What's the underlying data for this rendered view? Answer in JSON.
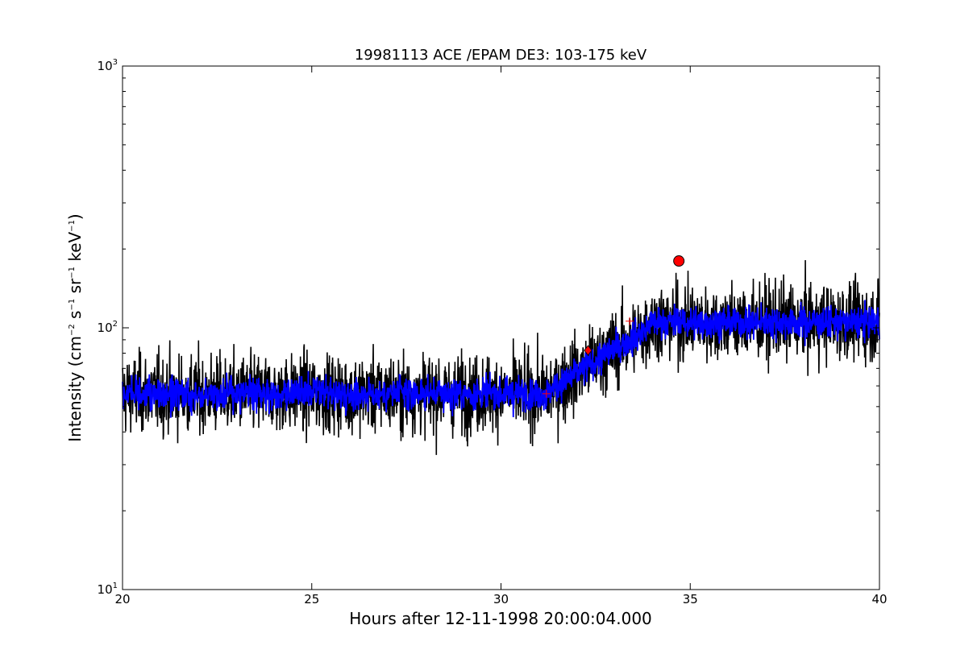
{
  "chart_data": {
    "type": "line",
    "title": "19981113 ACE /EPAM DE3: 103-175 keV",
    "xlabel": "Hours after 12-11-1998 20:00:04.000",
    "ylabel": {
      "prefix": "Intensity (cm",
      "sup1": "−2",
      "mid1": " s",
      "sup2": "−1",
      "mid2": " sr",
      "sup3": "−1",
      "mid3": " keV",
      "sup4": "−1",
      "suffix": ")"
    },
    "xlim": [
      20,
      40
    ],
    "ylim": [
      10,
      1000
    ],
    "yscale": "log",
    "grid": false,
    "x_ticks": [
      {
        "value": 20,
        "label": "20"
      },
      {
        "value": 25,
        "label": "25"
      },
      {
        "value": 30,
        "label": "30"
      },
      {
        "value": 35,
        "label": "35"
      },
      {
        "value": 40,
        "label": "40"
      }
    ],
    "y_ticks": [
      {
        "value": 10,
        "base": "10",
        "exp": "1"
      },
      {
        "value": 100,
        "base": "10",
        "exp": "2"
      },
      {
        "value": 1000,
        "base": "10",
        "exp": "3"
      }
    ],
    "series": [
      {
        "color": "#000000",
        "style": "line",
        "noise": "raw",
        "segments": [
          {
            "x0": 20.0,
            "x1": 31.3,
            "y0": 56,
            "y1": 56
          },
          {
            "x0": 31.3,
            "x1": 33.9,
            "y0": 58,
            "y1": 100
          },
          {
            "x0": 33.9,
            "x1": 40.0,
            "y0": 105,
            "y1": 105
          }
        ]
      },
      {
        "color": "#0000ff",
        "style": "line",
        "noise": "smoothed",
        "segments": [
          {
            "x0": 20.0,
            "x1": 31.3,
            "y0": 56,
            "y1": 56
          },
          {
            "x0": 31.3,
            "x1": 33.9,
            "y0": 58,
            "y1": 100
          },
          {
            "x0": 33.9,
            "x1": 40.0,
            "y0": 105,
            "y1": 105
          }
        ]
      }
    ],
    "markers": [
      {
        "shape": "circle",
        "x": 34.7,
        "y": 180,
        "color": "#ff0000"
      },
      {
        "shape": "diamond",
        "x": 32.3,
        "y": 82,
        "color": "#ff0000"
      },
      {
        "shape": "plus",
        "x": 31.2,
        "y": 56,
        "color": "#ff0000"
      },
      {
        "shape": "plus",
        "x": 33.4,
        "y": 106,
        "color": "#ff0000"
      }
    ]
  }
}
